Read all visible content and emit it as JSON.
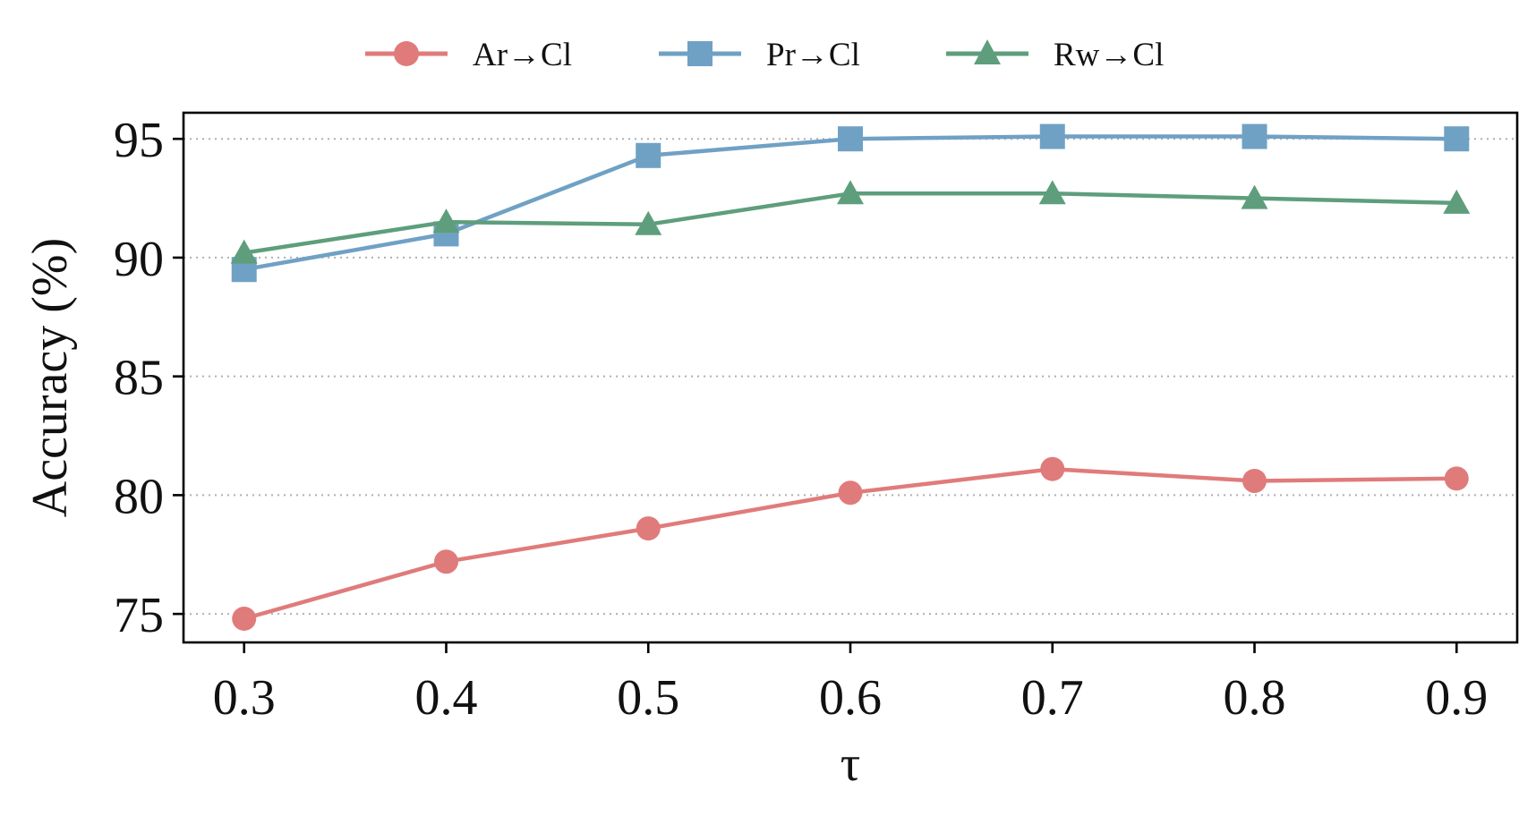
{
  "chart_data": {
    "type": "line",
    "title": "",
    "xlabel": "τ",
    "ylabel": "Accuracy (%)",
    "x": [
      0.3,
      0.4,
      0.5,
      0.6,
      0.7,
      0.8,
      0.9
    ],
    "x_tick_labels": [
      "0.3",
      "0.4",
      "0.5",
      "0.6",
      "0.7",
      "0.8",
      "0.9"
    ],
    "xlim": [
      0.27,
      0.93
    ],
    "ylim": [
      73.8,
      96.1
    ],
    "y_ticks": [
      75,
      80,
      85,
      90,
      95
    ],
    "y_tick_labels": [
      "75",
      "80",
      "85",
      "90",
      "95"
    ],
    "grid": "horizontal dotted",
    "legend_position": "top-center, outside",
    "series": [
      {
        "name": "Ar→Cl",
        "marker": "circle",
        "color": "#E07B7B",
        "values": [
          74.8,
          77.2,
          78.6,
          80.1,
          81.1,
          80.6,
          80.7
        ]
      },
      {
        "name": "Pr→Cl",
        "marker": "square",
        "color": "#6FA1C4",
        "values": [
          89.5,
          91.0,
          94.3,
          95.0,
          95.1,
          95.1,
          95.0
        ]
      },
      {
        "name": "Rw→Cl",
        "marker": "triangle",
        "color": "#5E9E7C",
        "values": [
          90.2,
          91.5,
          91.4,
          92.7,
          92.7,
          92.5,
          92.3
        ]
      }
    ]
  }
}
